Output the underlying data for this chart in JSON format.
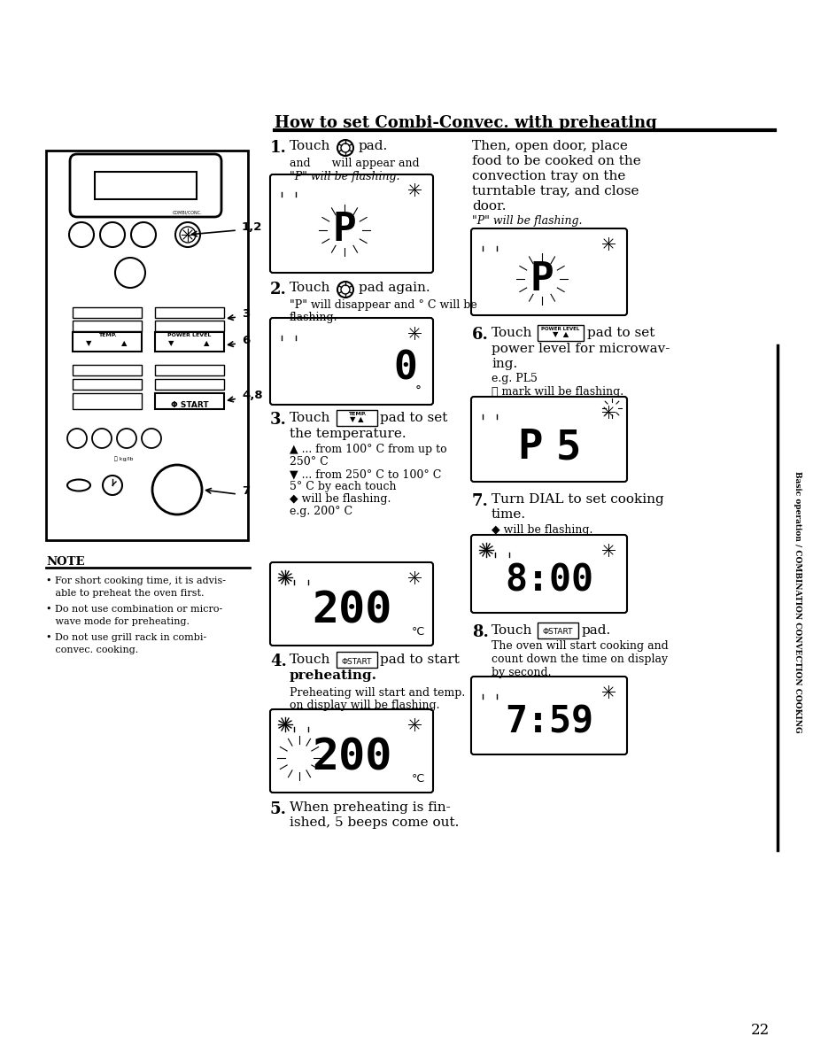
{
  "title": "How to set Combi-Convec. with preheating",
  "page_number": "22",
  "background_color": "#ffffff",
  "text_color": "#000000",
  "sidebar_text": "Basic operation / COMBINATION CONVECTION COOKING",
  "note_title": "NOTE",
  "note_bullets": [
    "For short cooking time, it is advis-\nable to preheat the oven first.",
    "Do not use combination or micro-\nwave mode for preheating.",
    "Do not use grill rack in combi-\nconvec. cooking."
  ],
  "step1_head": "1.",
  "step1_text1": "Touch",
  "step1_text2": "pad.",
  "step1_sub1": "and      will appear and",
  "step1_sub2": "\"P\" will be flashing.",
  "step2_head": "2.",
  "step2_text1": "Touch",
  "step2_text2": "pad again.",
  "step2_sub1": "\"P\" will disappear and ° C will be",
  "step2_sub2": "flashing.",
  "step3_head": "3.",
  "step3_text1": "Touch",
  "step3_text2": "pad to set",
  "step3_text3": "the temperature.",
  "step3_sub": [
    "▲ ... from 100° C from up to",
    "250° C",
    "▼ ... from 250° C to 100° C",
    "5° C by each touch",
    "◆ will be flashing.",
    "e.g. 200° C"
  ],
  "step4_head": "4.",
  "step4_text1": "Touch",
  "step4_text2": "pad to start",
  "step4_text3": "preheating.",
  "step4_sub1": "Preheating will start and temp.",
  "step4_sub2": "on display will be flashing.",
  "step5_head": "5.",
  "step5_text1": "When preheating is fin-",
  "step5_text2": "ished, 5 beeps come out.",
  "step5cont_lines": [
    "Then, open door, place",
    "food to be cooked on the",
    "convection tray on the",
    "turntable tray, and close",
    "door."
  ],
  "step5cont_sub": "\"P\" will be flashing.",
  "step6_head": "6.",
  "step6_text1": "Touch",
  "step6_text2": "pad to set",
  "step6_text3": "power level for microwav-",
  "step6_text4": "ing.",
  "step6_sub1": "e.g. PL5",
  "step6_sub2": "ⓘ mark will be flashing.",
  "step7_head": "7.",
  "step7_text1": "Turn DIAL to set cooking",
  "step7_text2": "time.",
  "step7_sub": "◆ will be flashing.",
  "step8_head": "8.",
  "step8_text1": "Touch",
  "step8_text2": "pad.",
  "step8_sub1": "The oven will start cooking and",
  "step8_sub2": "count down the time on display",
  "step8_sub3": "by second.",
  "display1_digit": "P",
  "display2_digit": "0",
  "display3_digits": "200",
  "display4_digits": "200",
  "display5_digit": "P",
  "display6_digits": [
    "P",
    "5"
  ],
  "display7_digits": "8:00",
  "display8_digits": "7:59"
}
